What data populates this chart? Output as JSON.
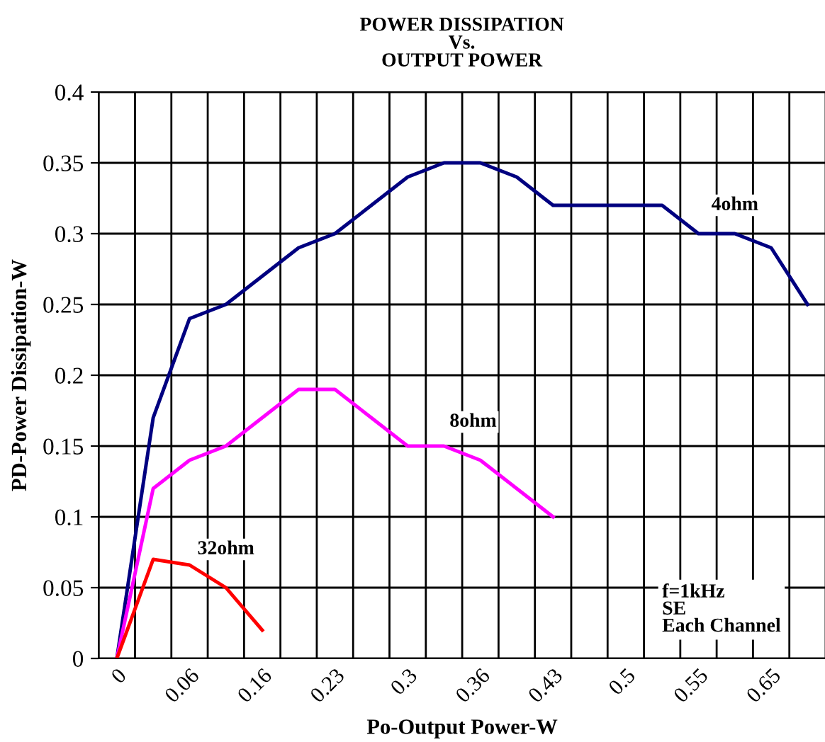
{
  "chart_data": {
    "type": "line",
    "title": "POWER DISSIPATION\nVs.\nOUTPUT POWER",
    "xlabel": "Po-Output Power-W",
    "ylabel": "PD-Power Dissipation-W",
    "categories": [
      "0",
      null,
      "0.06",
      null,
      "0.16",
      null,
      "0.23",
      null,
      "0.3",
      null,
      "0.36",
      null,
      "0.43",
      null,
      "0.5",
      null,
      "0.55",
      null,
      "0.65",
      null
    ],
    "series": [
      {
        "name": "4ohm",
        "color": "#000080",
        "values": [
          0,
          0.17,
          0.24,
          0.25,
          0.27,
          0.29,
          0.3,
          0.32,
          0.34,
          0.35,
          0.35,
          0.34,
          0.32,
          0.32,
          0.32,
          0.32,
          0.3,
          0.3,
          0.29,
          0.25
        ]
      },
      {
        "name": "8ohm",
        "color": "#ff00ff",
        "values": [
          0,
          0.12,
          0.14,
          0.15,
          0.17,
          0.19,
          0.19,
          0.17,
          0.15,
          0.15,
          0.14,
          0.12,
          0.1,
          null,
          null,
          null,
          null,
          null,
          null,
          null
        ]
      },
      {
        "name": "32ohm",
        "color": "#ff0000",
        "values": [
          0,
          0.07,
          0.066,
          0.05,
          0.02,
          null,
          null,
          null,
          null,
          null,
          null,
          null,
          null,
          null,
          null,
          null,
          null,
          null,
          null,
          null
        ]
      }
    ],
    "ylim": [
      0,
      0.4
    ],
    "yticks": [
      0,
      0.05,
      0.1,
      0.15,
      0.2,
      0.25,
      0.3,
      0.35,
      0.4
    ],
    "grid": true,
    "legend": false,
    "marker": "none",
    "line_style": "solid",
    "annotations": [
      "f=1kHz\nSE\nEach Channel"
    ]
  }
}
